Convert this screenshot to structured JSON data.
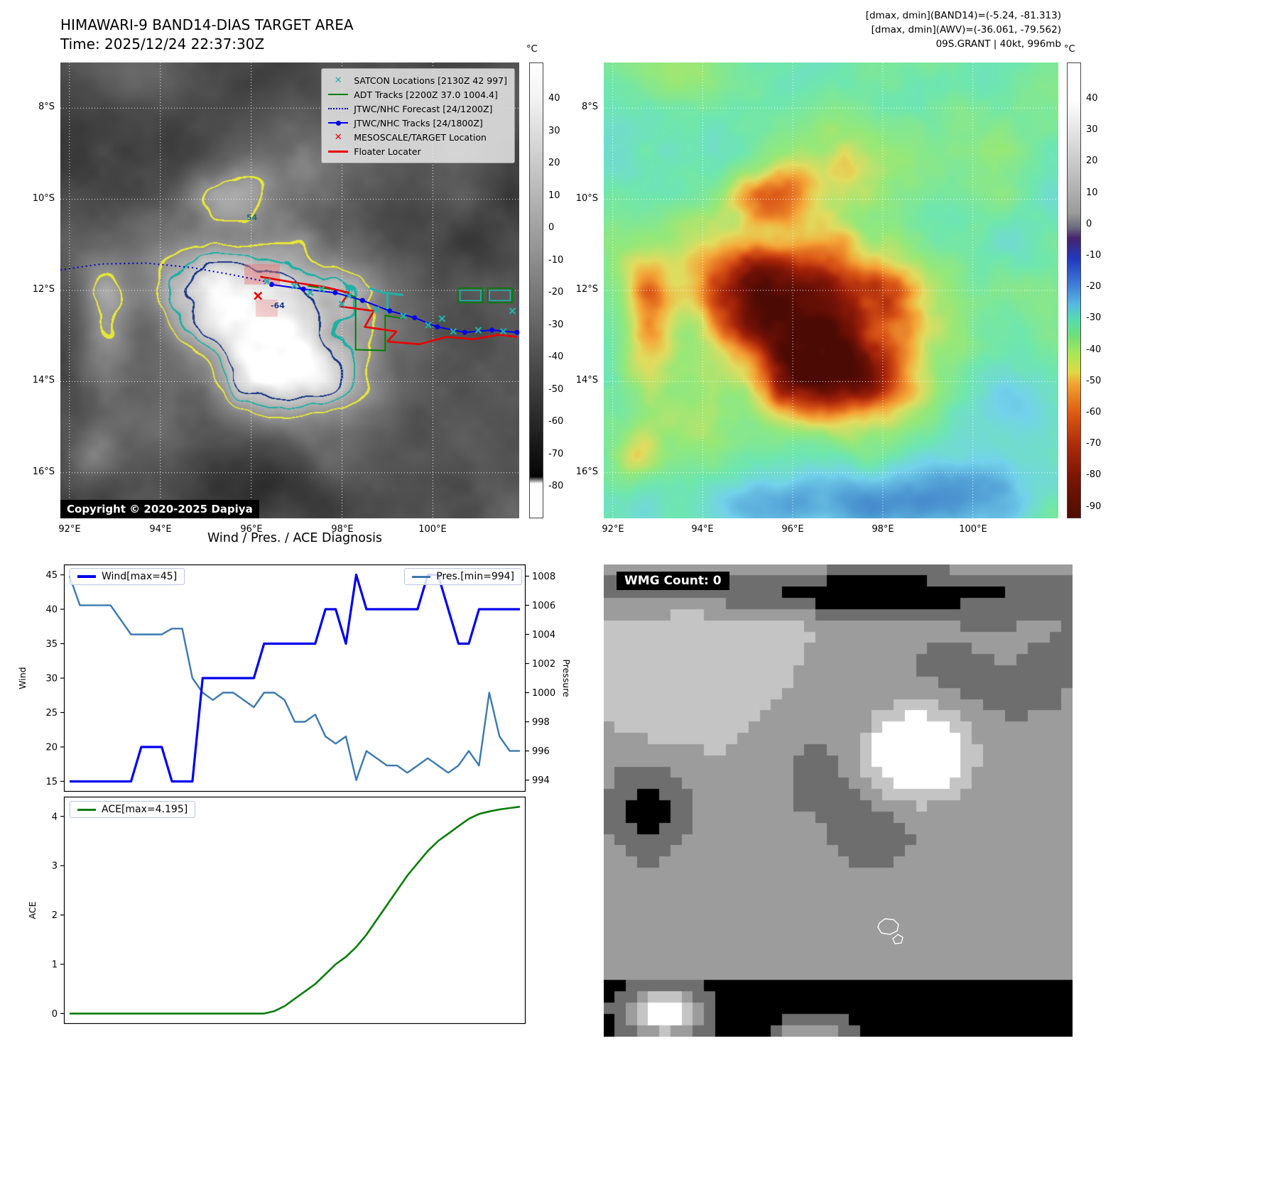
{
  "header": {
    "title_line1": "HIMAWARI-9 BAND14-DIAS TARGET AREA",
    "title_line2": "Time: 2025/12/24 22:37:30Z",
    "right_line1": "[dmax, dmin](BAND14)=(-5.24, -81.313)",
    "right_line2": "[dmax, dmin](AWV)=(-36.061, -79.562)",
    "right_line3": "09S.GRANT | 40kt, 996mb"
  },
  "map_left": {
    "lon_range": [
      91.8,
      101.9
    ],
    "lat_range": [
      7.0,
      17.0
    ],
    "lat_ticks": [
      "8°S",
      "10°S",
      "12°S",
      "14°S",
      "16°S"
    ],
    "lon_ticks": [
      "92°E",
      "94°E",
      "96°E",
      "98°E",
      "100°E"
    ],
    "copyright": "Copyright © 2020-2025 Dapiya",
    "contour_labels": [
      "54",
      "-64"
    ],
    "legend": [
      {
        "label": "SATCON Locations [2130Z 42 997]",
        "marker": "x",
        "color": "#20b2aa"
      },
      {
        "label": "ADT Tracks [2200Z 37.0 1004.4]",
        "marker": "line",
        "color": "#008000"
      },
      {
        "label": "JTWC/NHC Forecast [24/1200Z]",
        "marker": "dotted",
        "color": "#0000cc"
      },
      {
        "label": "JTWC/NHC Tracks [24/1800Z]",
        "marker": "line-dot",
        "color": "#0000ee"
      },
      {
        "label": "MESOSCALE/TARGET Location",
        "marker": "x",
        "color": "#e80000"
      },
      {
        "label": "Floater Locater",
        "marker": "line",
        "color": "#e80000"
      }
    ],
    "colorbar": {
      "unit": "°C",
      "ticks": [
        40,
        30,
        20,
        10,
        0,
        -10,
        -20,
        -30,
        -40,
        -50,
        -60,
        -70,
        -80
      ],
      "gradient": [
        [
          "0%",
          "#ffffff"
        ],
        [
          "8%",
          "#f2f2f2"
        ],
        [
          "91%",
          "#050505"
        ],
        [
          "92.5%",
          "#ffffff"
        ],
        [
          "100%",
          "#fdfdfd"
        ]
      ]
    },
    "tracks": {
      "forecast": {
        "color": "#0000cc",
        "points": [
          [
            91.8,
            11.55
          ],
          [
            92.7,
            11.42
          ],
          [
            93.7,
            11.4
          ],
          [
            94.7,
            11.5
          ],
          [
            95.6,
            11.66
          ],
          [
            96.45,
            11.83
          ]
        ]
      },
      "jtwc": {
        "color": "#0000ee",
        "points": [
          [
            96.45,
            11.87
          ],
          [
            97.15,
            11.97
          ],
          [
            97.85,
            12.05
          ],
          [
            98.45,
            12.22
          ],
          [
            99.05,
            12.45
          ],
          [
            99.6,
            12.6
          ],
          [
            100.1,
            12.8
          ],
          [
            100.7,
            12.92
          ],
          [
            101.3,
            12.87
          ],
          [
            101.85,
            12.92
          ]
        ]
      },
      "floater": {
        "color": "#e80000",
        "points": [
          [
            96.2,
            11.7
          ],
          [
            96.9,
            11.82
          ],
          [
            97.6,
            11.92
          ],
          [
            98.15,
            12.05
          ],
          [
            97.95,
            12.35
          ],
          [
            98.7,
            12.45
          ],
          [
            98.5,
            12.8
          ],
          [
            99.2,
            12.9
          ],
          [
            99.0,
            13.12
          ],
          [
            99.7,
            13.18
          ],
          [
            100.3,
            13.02
          ],
          [
            100.9,
            13.07
          ],
          [
            101.45,
            12.97
          ],
          [
            101.85,
            13.02
          ]
        ]
      },
      "adt": {
        "color": "#008000",
        "points": [
          [
            97.25,
            11.9
          ],
          [
            97.95,
            12.0
          ],
          [
            98.3,
            12.15
          ],
          [
            98.3,
            13.3
          ],
          [
            98.95,
            13.32
          ],
          [
            98.95,
            12.55
          ],
          [
            99.35,
            12.62
          ]
        ]
      },
      "adt_boxes": [
        [
          100.55,
          11.95,
          0.55,
          0.32
        ],
        [
          101.2,
          11.95,
          0.55,
          0.32
        ]
      ],
      "satcon_color": "#20b2aa",
      "satcon_x": [
        [
          96.35,
          11.8
        ],
        [
          96.95,
          11.9
        ],
        [
          97.55,
          11.97
        ],
        [
          98.15,
          12.12
        ],
        [
          98.75,
          12.42
        ],
        [
          99.35,
          12.56
        ],
        [
          99.9,
          12.76
        ],
        [
          100.45,
          12.9
        ],
        [
          101.0,
          12.87
        ],
        [
          101.55,
          12.9
        ],
        [
          100.2,
          12.62
        ],
        [
          101.75,
          12.45
        ],
        [
          97.3,
          12.05
        ],
        [
          98.0,
          12.3
        ]
      ],
      "satcon_segs": [
        [
          [
            98.9,
            12.05
          ],
          [
            99.35,
            12.1
          ]
        ],
        [
          [
            99.0,
            12.08
          ],
          [
            99.0,
            12.5
          ]
        ],
        [
          [
            98.6,
            11.95
          ],
          [
            98.9,
            12.05
          ]
        ]
      ],
      "meso_color": "#e80000",
      "meso_x": [
        96.15,
        12.12
      ],
      "pink_boxes": [
        [
          95.85,
          11.42,
          0.78,
          0.45,
          0.45
        ],
        [
          96.1,
          12.2,
          0.48,
          0.38,
          0.3
        ]
      ]
    }
  },
  "map_right": {
    "lat_ticks": [
      "8°S",
      "10°S",
      "12°S",
      "14°S",
      "16°S"
    ],
    "lon_ticks": [
      "92°E",
      "94°E",
      "96°E",
      "98°E",
      "100°E"
    ],
    "colorbar": {
      "unit": "°C",
      "ticks": [
        40,
        30,
        20,
        10,
        0,
        -10,
        -20,
        -30,
        -40,
        -50,
        -60,
        -70,
        -80,
        -90
      ],
      "gradient": [
        [
          "0%",
          "#ffffff"
        ],
        [
          "8%",
          "#ffffff"
        ],
        [
          "22%",
          "#c9c9c9"
        ],
        [
          "33%",
          "#9b9b9b"
        ],
        [
          "36%",
          "#6e6e7e"
        ],
        [
          "38.5%",
          "#46246e"
        ],
        [
          "43%",
          "#2038c0"
        ],
        [
          "49%",
          "#3f80d8"
        ],
        [
          "53%",
          "#55b8e2"
        ],
        [
          "56.5%",
          "#57dcae"
        ],
        [
          "60%",
          "#6fdf78"
        ],
        [
          "64%",
          "#a8e858"
        ],
        [
          "68%",
          "#dfd943"
        ],
        [
          "70.5%",
          "#f2a432"
        ],
        [
          "77%",
          "#dd5a12"
        ],
        [
          "84%",
          "#ad2c08"
        ],
        [
          "91%",
          "#7d1404"
        ],
        [
          "100%",
          "#4f0c03"
        ]
      ]
    }
  },
  "charts_title": "Wind / Pres. / ACE Diagnosis",
  "chart_data": [
    {
      "type": "line",
      "title": "Wind / Pres. / ACE Diagnosis",
      "ylabel": "Wind",
      "y2label": "Pressure",
      "ylim": [
        13.5,
        46.5
      ],
      "yticks": [
        15,
        20,
        25,
        30,
        35,
        40,
        45
      ],
      "y2lim": [
        993.2,
        1008.8
      ],
      "y2ticks": [
        994,
        996,
        998,
        1000,
        1002,
        1004,
        1006,
        1008
      ],
      "series": [
        {
          "name": "Wind[max=45]",
          "axis": "left",
          "color": "#0000ee",
          "values": [
            15,
            15,
            15,
            15,
            15,
            15,
            15,
            20,
            20,
            20,
            15,
            15,
            15,
            30,
            30,
            30,
            30,
            30,
            30,
            35,
            35,
            35,
            35,
            35,
            35,
            40,
            40,
            35,
            45,
            40,
            40,
            40,
            40,
            40,
            40,
            45,
            45,
            40,
            35,
            35,
            40,
            40,
            40,
            40,
            40
          ]
        },
        {
          "name": "Pres.[min=994]",
          "axis": "right",
          "color": "#3b78b0",
          "values": [
            1008,
            1006,
            1006,
            1006,
            1006,
            1005,
            1004,
            1004,
            1004,
            1004,
            1004.4,
            1004.4,
            1001,
            1000,
            999.5,
            1000,
            1000,
            999.5,
            999,
            1000,
            1000,
            999.5,
            998,
            998,
            998.5,
            997,
            996.5,
            997,
            994,
            996,
            995.5,
            995,
            995,
            994.5,
            995,
            995.5,
            995,
            994.5,
            995,
            996,
            995,
            1000,
            997,
            996,
            996
          ]
        }
      ]
    },
    {
      "type": "line",
      "ylabel": "ACE",
      "ylim": [
        -0.21,
        4.4
      ],
      "yticks": [
        0,
        1,
        2,
        3,
        4
      ],
      "series": [
        {
          "name": "ACE[max=4.195]",
          "color": "#0a7d0a",
          "values": [
            0,
            0,
            0,
            0,
            0,
            0,
            0,
            0,
            0,
            0,
            0,
            0,
            0,
            0,
            0,
            0,
            0,
            0,
            0,
            0,
            0.05,
            0.15,
            0.3,
            0.45,
            0.6,
            0.8,
            1.0,
            1.15,
            1.35,
            1.6,
            1.9,
            2.2,
            2.5,
            2.8,
            3.05,
            3.3,
            3.5,
            3.65,
            3.8,
            3.95,
            4.05,
            4.1,
            4.14,
            4.17,
            4.195
          ]
        }
      ]
    }
  ],
  "wmg": {
    "label": "WMG Count: 0"
  }
}
